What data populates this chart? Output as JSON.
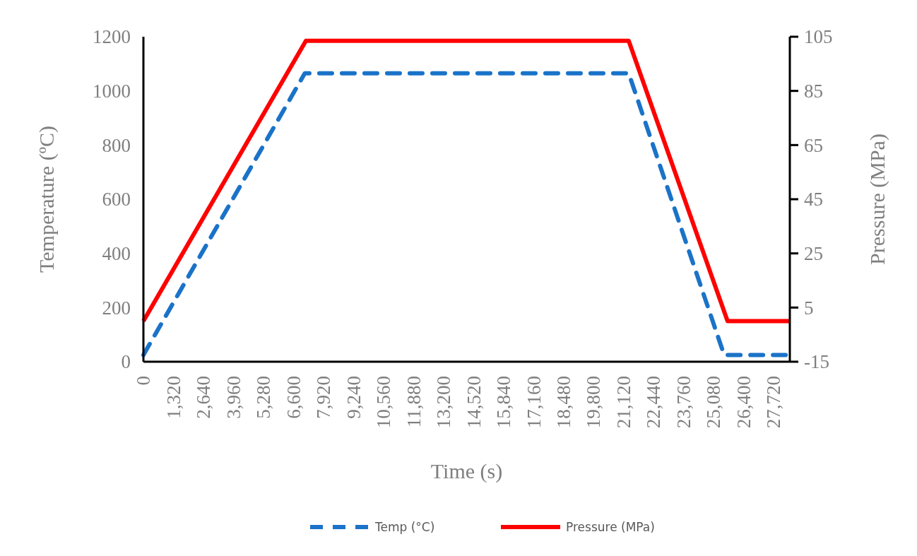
{
  "chart_data": {
    "type": "line",
    "xlabel": "Time (s)",
    "ylabel": "Temperature (ºC)",
    "y2label": "Pressure (MPa)",
    "series": [
      {
        "name": "Temp (°C)",
        "color": "#1a73c8",
        "line_style": "dashed",
        "x": [
          0,
          7100,
          21350,
          25550,
          28440
        ],
        "values": [
          25,
          1065,
          1065,
          25,
          25
        ]
      },
      {
        "name": "Pressure (MPa)",
        "color": "#ff0000",
        "line_style": "solid",
        "axis": "y2",
        "x": [
          0,
          7150,
          21350,
          25700,
          28440
        ],
        "values": [
          0,
          103.5,
          103.5,
          0,
          0
        ]
      }
    ],
    "xlim": [
      0,
      28440
    ],
    "xticks": [
      {
        "value": 0,
        "label": "0"
      },
      {
        "value": 1320,
        "label": "1,320"
      },
      {
        "value": 2640,
        "label": "2,640"
      },
      {
        "value": 3960,
        "label": "3,960"
      },
      {
        "value": 5280,
        "label": "5,280"
      },
      {
        "value": 6600,
        "label": "6,600"
      },
      {
        "value": 7920,
        "label": "7,920"
      },
      {
        "value": 9240,
        "label": "9,240"
      },
      {
        "value": 10560,
        "label": "10,560"
      },
      {
        "value": 11880,
        "label": "11,880"
      },
      {
        "value": 13200,
        "label": "13,200"
      },
      {
        "value": 14520,
        "label": "14,520"
      },
      {
        "value": 15840,
        "label": "15,840"
      },
      {
        "value": 17160,
        "label": "17,160"
      },
      {
        "value": 18480,
        "label": "18,480"
      },
      {
        "value": 19800,
        "label": "19,800"
      },
      {
        "value": 21120,
        "label": "21,120"
      },
      {
        "value": 22440,
        "label": "22,440"
      },
      {
        "value": 23760,
        "label": "23,760"
      },
      {
        "value": 25080,
        "label": "25,080"
      },
      {
        "value": 26400,
        "label": "26,400"
      },
      {
        "value": 27720,
        "label": "27,720"
      }
    ],
    "ylim": [
      0,
      1200
    ],
    "yticks": [
      0,
      200,
      400,
      600,
      800,
      1000,
      1200
    ],
    "y2lim": [
      -15,
      105
    ],
    "y2ticks": [
      -15,
      5,
      25,
      45,
      65,
      85,
      105
    ],
    "grid": false,
    "legend": "bottom"
  }
}
